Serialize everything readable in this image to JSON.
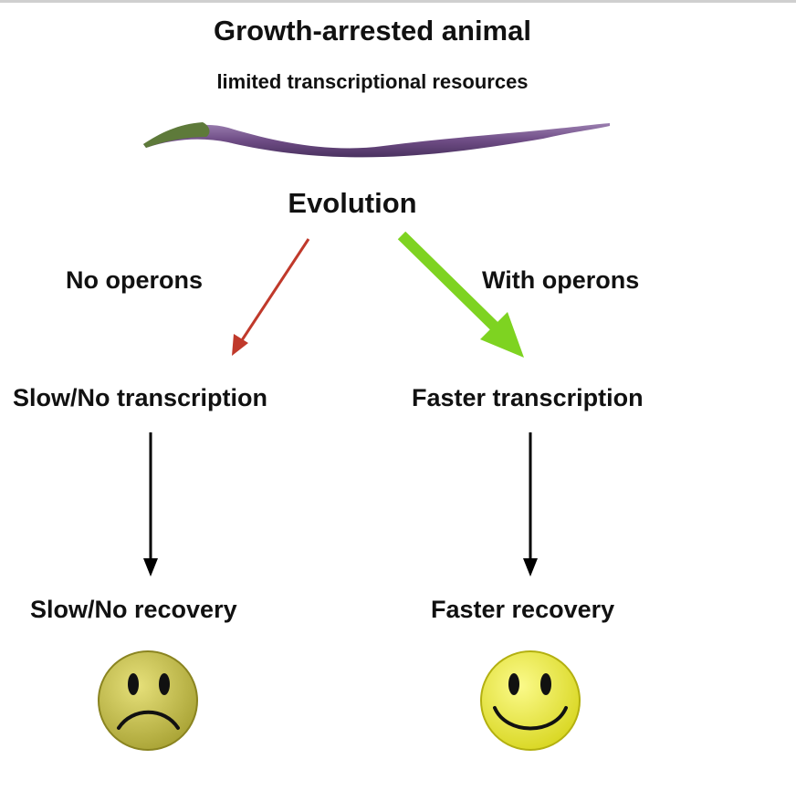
{
  "title": "Growth-arrested animal",
  "subtitle": "limited transcriptional resources",
  "center_label": "Evolution",
  "left_branch": {
    "label": "No operons",
    "arrow_color": "#c0392b",
    "outcome_1": "Slow/No transcription",
    "outcome_2": "Slow/No recovery",
    "face": "sad-face-icon"
  },
  "right_branch": {
    "label": "With operons",
    "arrow_color": "#7ed321",
    "outcome_1": "Faster transcription",
    "outcome_2": "Faster recovery",
    "face": "happy-face-icon"
  },
  "colors": {
    "worm_body": "#7a5a8c",
    "worm_head": "#5e7a3a",
    "sad_face": "#c8c24a",
    "happy_face": "#f4f24a"
  }
}
